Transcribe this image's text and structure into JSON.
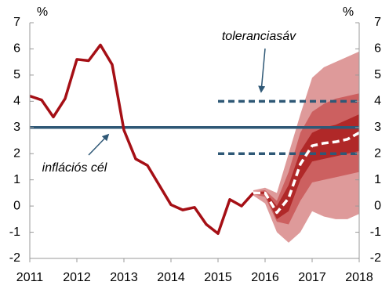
{
  "chart_data": {
    "type": "line",
    "y_label": "%",
    "y2_label": "%",
    "xlim": [
      2011,
      2018
    ],
    "xticks": [
      2011,
      2012,
      2013,
      2014,
      2015,
      2016,
      2017,
      2018
    ],
    "ylim": [
      -2,
      7
    ],
    "yticks": [
      -2,
      -1,
      0,
      1,
      2,
      3,
      4,
      5,
      6,
      7
    ],
    "y2lim": [
      -2,
      7
    ],
    "y2ticks": [
      -2,
      -1,
      0,
      1,
      2,
      3,
      4,
      5,
      6,
      7
    ],
    "bands": [
      {
        "color": "#de9a9a",
        "x": [
          2015.75,
          2016,
          2016.25,
          2016.5,
          2016.75,
          2017,
          2017.25,
          2017.5,
          2017.75,
          2018
        ],
        "lower": [
          0.4,
          0.1,
          -1.0,
          -1.4,
          -1.0,
          -0.2,
          -0.4,
          -0.5,
          -0.5,
          -0.3
        ],
        "upper": [
          0.6,
          0.7,
          0.5,
          2.0,
          3.5,
          4.9,
          5.3,
          5.5,
          5.7,
          5.9
        ]
      },
      {
        "color": "#cc6060",
        "x": [
          2015.75,
          2016,
          2016.25,
          2016.5,
          2016.75,
          2017,
          2017.25,
          2017.5,
          2017.75,
          2018
        ],
        "lower": [
          0.45,
          0.35,
          -0.6,
          -0.7,
          0.2,
          0.9,
          1.0,
          1.1,
          1.2,
          1.3
        ],
        "upper": [
          0.55,
          0.6,
          0.2,
          1.3,
          2.8,
          3.6,
          3.9,
          4.1,
          4.2,
          4.3
        ]
      },
      {
        "color": "#b02828",
        "x": [
          2015.75,
          2016,
          2016.25,
          2016.5,
          2016.75,
          2017,
          2017.25,
          2017.5,
          2017.75,
          2018
        ],
        "lower": [
          0.48,
          0.45,
          -0.5,
          -0.2,
          1.0,
          1.7,
          1.8,
          1.9,
          2.0,
          2.1
        ],
        "upper": [
          0.52,
          0.55,
          0.0,
          0.8,
          2.1,
          2.8,
          3.0,
          3.1,
          3.3,
          3.5
        ]
      }
    ],
    "series": [
      {
        "color": "#a50f15",
        "style": "solid",
        "x": [
          2011,
          2011.25,
          2011.5,
          2011.75,
          2012,
          2012.25,
          2012.5,
          2012.75,
          2013,
          2013.25,
          2013.5,
          2013.75,
          2014,
          2014.25,
          2014.5,
          2014.75,
          2015,
          2015.25,
          2015.5,
          2015.75
        ],
        "values": [
          4.2,
          4.05,
          3.4,
          4.1,
          5.6,
          5.55,
          6.15,
          5.4,
          2.9,
          1.8,
          1.55,
          0.8,
          0.05,
          -0.15,
          -0.05,
          -0.7,
          -1.05,
          0.25,
          0.0,
          0.5
        ]
      },
      {
        "color": "#ffffff",
        "style": "dashed",
        "x": [
          2015.75,
          2016,
          2016.25,
          2016.5,
          2016.75,
          2017,
          2017.25,
          2017.5,
          2017.75,
          2018
        ],
        "values": [
          0.5,
          0.5,
          -0.25,
          0.3,
          1.6,
          2.3,
          2.4,
          2.45,
          2.55,
          2.8
        ]
      }
    ],
    "hlines": [
      {
        "y": 3,
        "xlim": [
          2011,
          2018
        ],
        "color": "#2f5876",
        "style": "solid"
      },
      {
        "y": 4,
        "xlim": [
          2015,
          2018
        ],
        "color": "#2f5876",
        "style": "dashed"
      },
      {
        "y": 2,
        "xlim": [
          2015,
          2018
        ],
        "color": "#2f5876",
        "style": "dashed"
      }
    ],
    "annotations": [
      "toleranciasáv",
      "inflációs cél"
    ]
  }
}
